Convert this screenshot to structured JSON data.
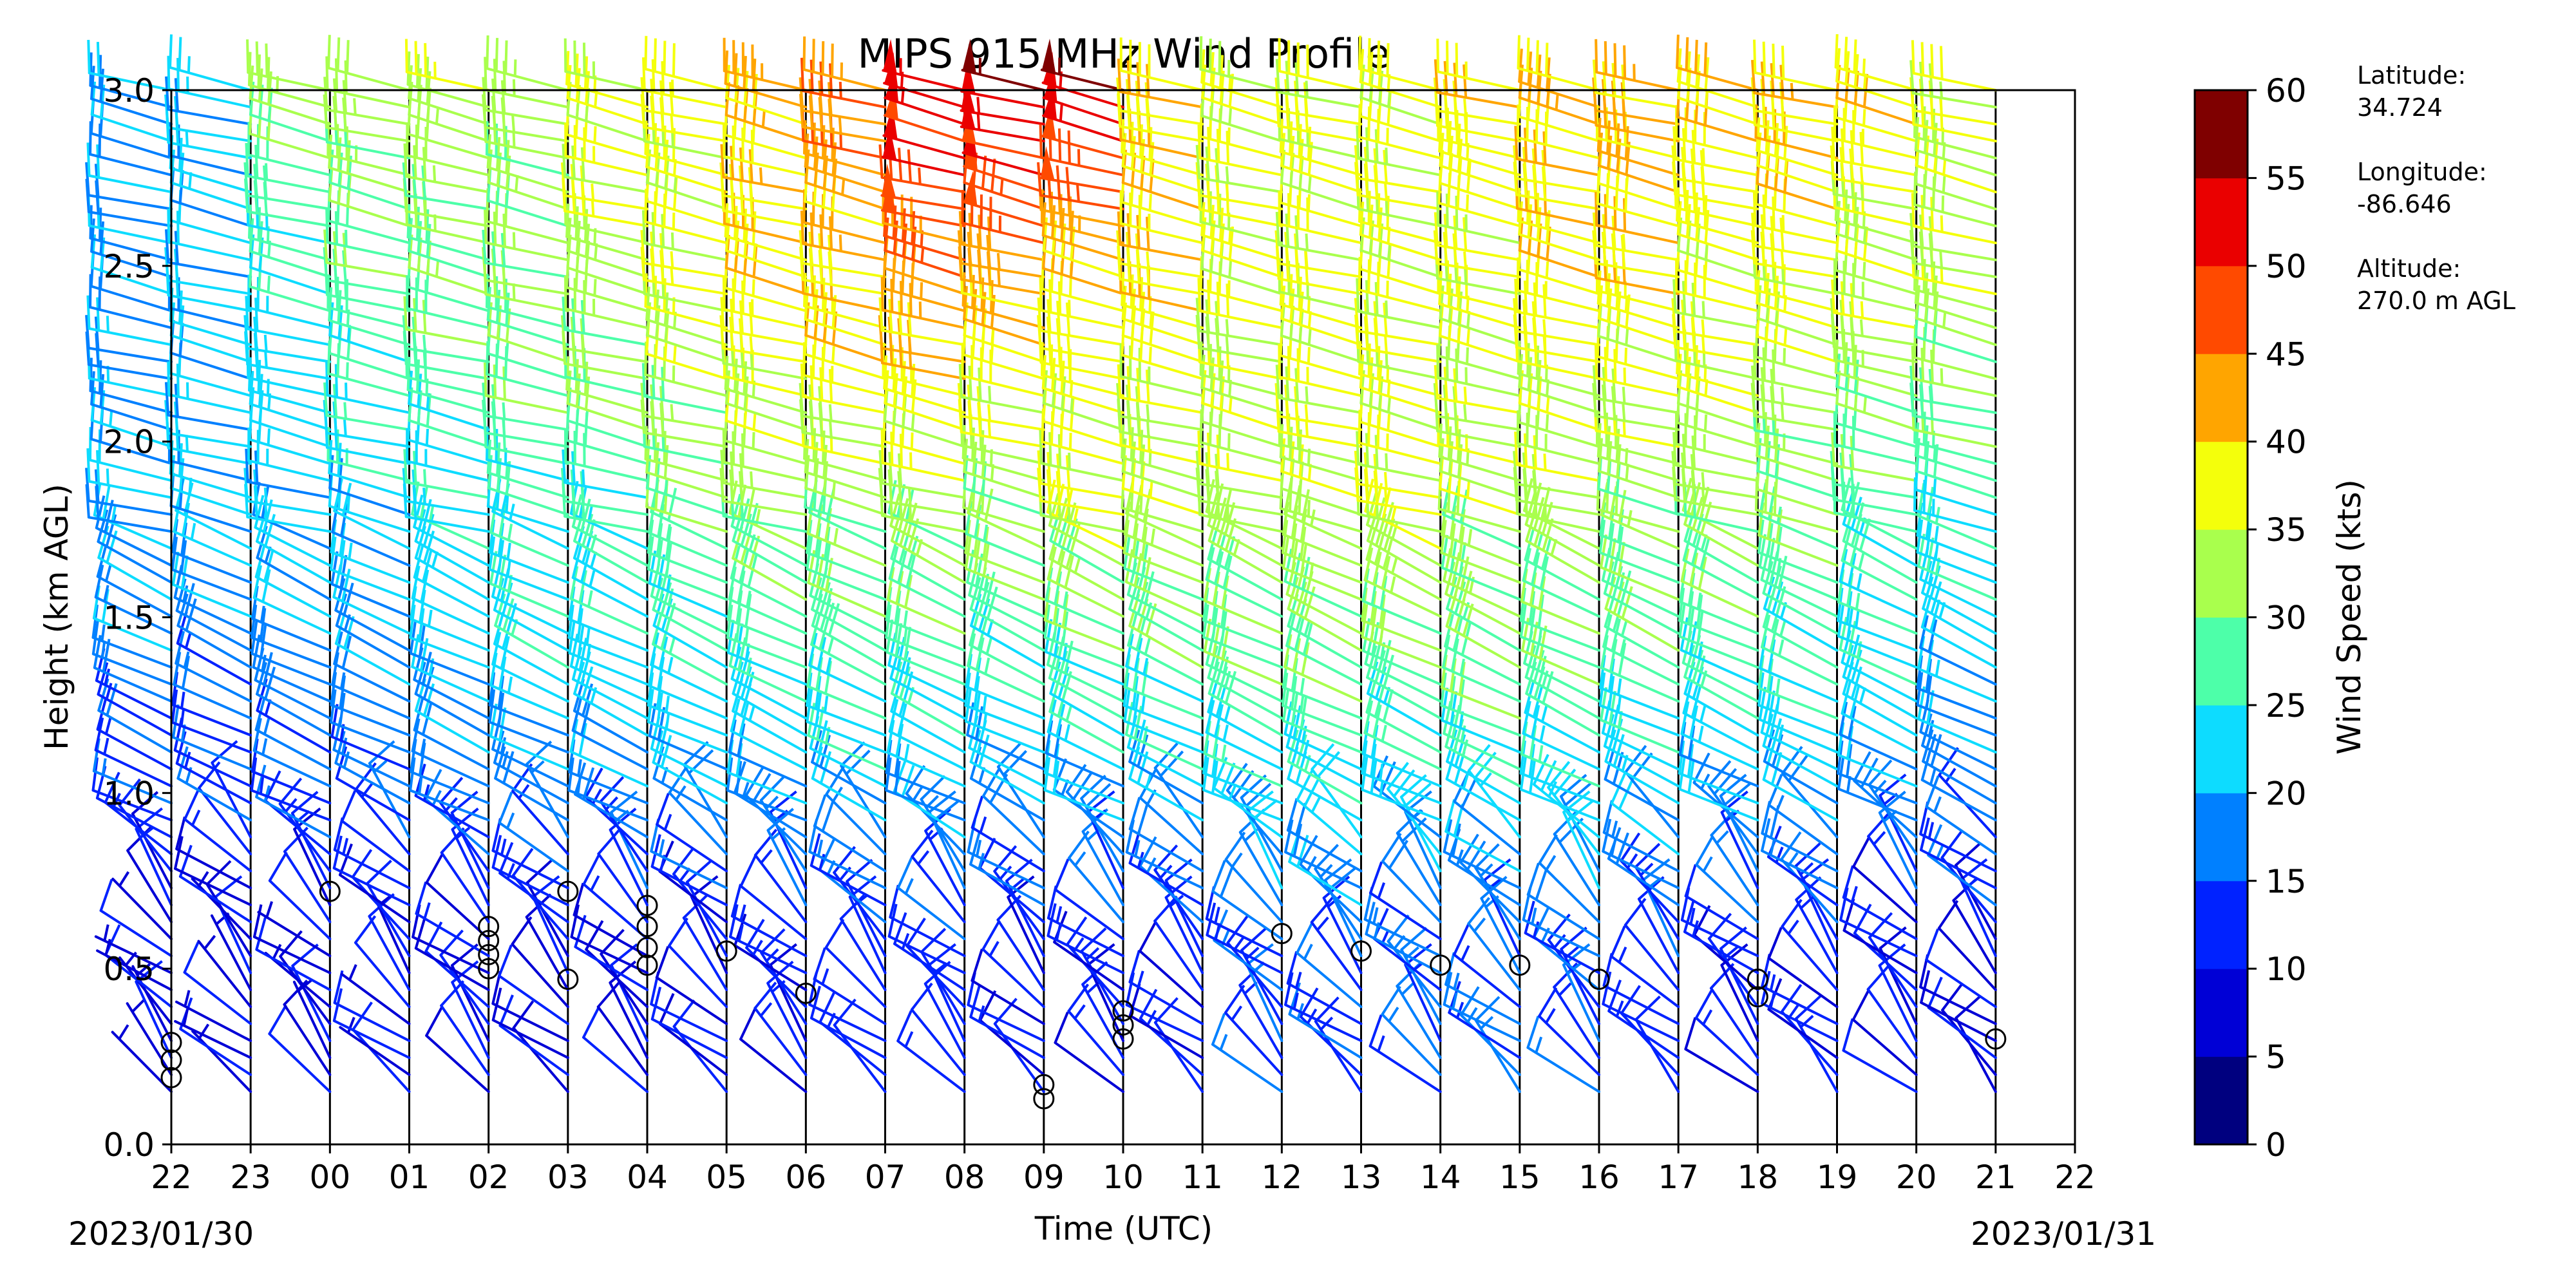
{
  "chart_data": {
    "type": "wind_barbs",
    "title": "MIPS 915 MHz Wind Profile",
    "xlabel": "Time (UTC)",
    "ylabel": "Height (km AGL)",
    "x_ticks": [
      "22",
      "23",
      "00",
      "01",
      "02",
      "03",
      "04",
      "05",
      "06",
      "07",
      "08",
      "09",
      "10",
      "11",
      "12",
      "13",
      "14",
      "15",
      "16",
      "17",
      "18",
      "19",
      "20",
      "21",
      "22"
    ],
    "y_ticks": [
      "0.0",
      "0.5",
      "1.0",
      "1.5",
      "2.0",
      "2.5",
      "3.0"
    ],
    "ylim": [
      0,
      3
    ],
    "start_date": "2023/01/30",
    "end_date": "2023/01/31",
    "colorbar": {
      "label": "Wind Speed (kts)",
      "ticks": [
        "0",
        "5",
        "10",
        "15",
        "20",
        "25",
        "30",
        "35",
        "40",
        "45",
        "50",
        "55",
        "60"
      ],
      "range": [
        0,
        60
      ],
      "colors": [
        "#00007f",
        "#0000d6",
        "#0022ff",
        "#0080ff",
        "#0ddcff",
        "#4dffa9",
        "#a9ff4d",
        "#f4ff0b",
        "#ffa500",
        "#ff4a00",
        "#ea0000",
        "#7f0000"
      ]
    },
    "site_info": {
      "latitude_label": "Latitude:",
      "latitude": "34.724",
      "longitude_label": "Longitude:",
      "longitude": "-86.646",
      "altitude_label": "Altitude:",
      "altitude": "270.0 m AGL"
    },
    "hourly_profiles": [
      {
        "hour": "22",
        "low": 8,
        "mid": 16,
        "high": 21,
        "upper": 20,
        "top": 20,
        "cloud_base_km": [
          0.29,
          0.24,
          0.19
        ]
      },
      {
        "hour": "23",
        "low": 8,
        "mid": 16,
        "high": 22,
        "upper": 20,
        "top": 22,
        "cloud_base_km": []
      },
      {
        "hour": "00",
        "low": 9,
        "mid": 17,
        "high": 22,
        "upper": 24,
        "top": 33,
        "cloud_base_km": [
          0.72
        ]
      },
      {
        "hour": "01",
        "low": 9,
        "mid": 18,
        "high": 22,
        "upper": 28,
        "top": 33,
        "cloud_base_km": []
      },
      {
        "hour": "02",
        "low": 10,
        "mid": 20,
        "high": 24,
        "upper": 30,
        "top": 33,
        "cloud_base_km": [
          0.62,
          0.58,
          0.54,
          0.5
        ]
      },
      {
        "hour": "03",
        "low": 10,
        "mid": 22,
        "high": 26,
        "upper": 31,
        "top": 33,
        "cloud_base_km": [
          0.72,
          0.47
        ]
      },
      {
        "hour": "04",
        "low": 10,
        "mid": 22,
        "high": 27,
        "upper": 33,
        "top": 35,
        "cloud_base_km": [
          0.68,
          0.62,
          0.56,
          0.51
        ]
      },
      {
        "hour": "05",
        "low": 10,
        "mid": 23,
        "high": 30,
        "upper": 35,
        "top": 38,
        "cloud_base_km": [
          0.55
        ]
      },
      {
        "hour": "06",
        "low": 12,
        "mid": 24,
        "high": 32,
        "upper": 38,
        "top": 42,
        "cloud_base_km": [
          0.43
        ]
      },
      {
        "hour": "07",
        "low": 12,
        "mid": 25,
        "high": 32,
        "upper": 40,
        "top": 45,
        "cloud_base_km": []
      },
      {
        "hour": "08",
        "low": 12,
        "mid": 25,
        "high": 33,
        "upper": 44,
        "top": 55,
        "cloud_base_km": []
      },
      {
        "hour": "09",
        "low": 12,
        "mid": 24,
        "high": 32,
        "upper": 42,
        "top": 55,
        "cloud_base_km": [
          0.17,
          0.13
        ]
      },
      {
        "hour": "10",
        "low": 12,
        "mid": 25,
        "high": 36,
        "upper": 38,
        "top": 55,
        "cloud_base_km": [
          0.38,
          0.34,
          0.3
        ]
      },
      {
        "hour": "11",
        "low": 12,
        "mid": 26,
        "high": 33,
        "upper": 38,
        "top": 40,
        "cloud_base_km": []
      },
      {
        "hour": "12",
        "low": 15,
        "mid": 27,
        "high": 33,
        "upper": 36,
        "top": 37,
        "cloud_base_km": [
          0.6
        ]
      },
      {
        "hour": "13",
        "low": 15,
        "mid": 28,
        "high": 34,
        "upper": 36,
        "top": 37,
        "cloud_base_km": [
          0.55
        ]
      },
      {
        "hour": "14",
        "low": 15,
        "mid": 28,
        "high": 35,
        "upper": 36,
        "top": 37,
        "cloud_base_km": [
          0.51
        ]
      },
      {
        "hour": "15",
        "low": 15,
        "mid": 28,
        "high": 33,
        "upper": 36,
        "top": 38,
        "cloud_base_km": [
          0.51
        ]
      },
      {
        "hour": "16",
        "low": 15,
        "mid": 27,
        "high": 33,
        "upper": 38,
        "top": 41,
        "cloud_base_km": [
          0.47
        ]
      },
      {
        "hour": "17",
        "low": 12,
        "mid": 26,
        "high": 32,
        "upper": 38,
        "top": 41,
        "cloud_base_km": []
      },
      {
        "hour": "18",
        "low": 12,
        "mid": 25,
        "high": 32,
        "upper": 37,
        "top": 39,
        "cloud_base_km": [
          0.47,
          0.42
        ]
      },
      {
        "hour": "19",
        "low": 12,
        "mid": 24,
        "high": 30,
        "upper": 36,
        "top": 41,
        "cloud_base_km": []
      },
      {
        "hour": "20",
        "low": 10,
        "mid": 22,
        "high": 28,
        "upper": 35,
        "top": 38,
        "cloud_base_km": []
      },
      {
        "hour": "21",
        "low": 10,
        "mid": 20,
        "high": 26,
        "upper": 34,
        "top": 36,
        "cloud_base_km": [
          0.3
        ]
      }
    ]
  }
}
